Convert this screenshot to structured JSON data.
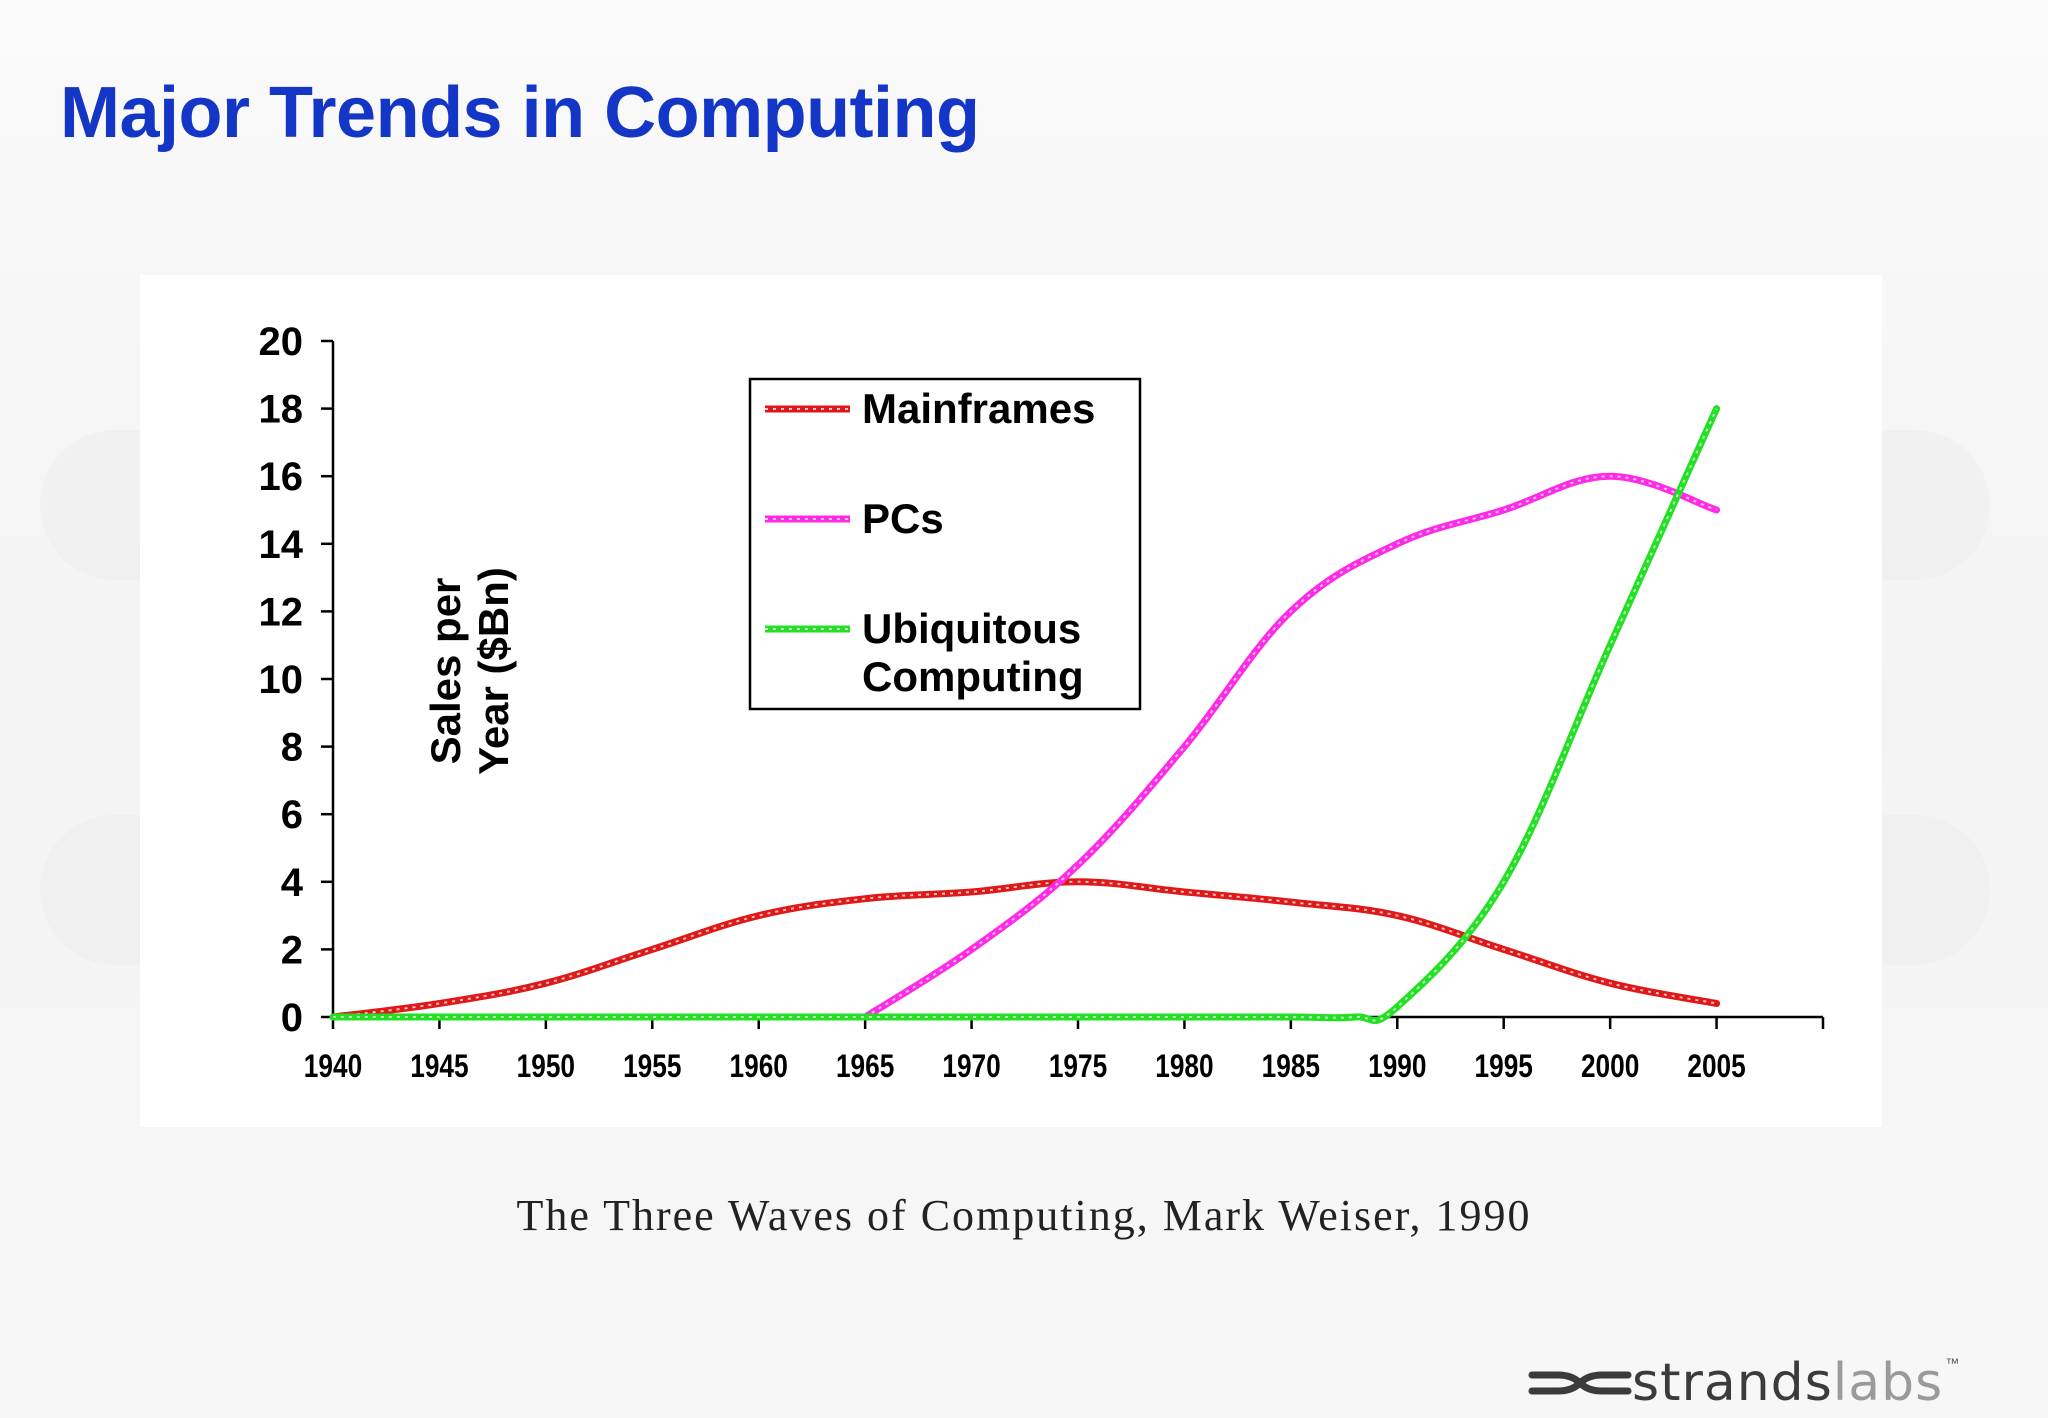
{
  "slide": {
    "title": "Major Trends in Computing",
    "caption": "The Three Waves of Computing, Mark Weiser, 1990",
    "logo": {
      "strong": "strands",
      "light": "labs",
      "tm": "™"
    }
  },
  "colors": {
    "title": "#1336c6",
    "mainframes": "#e01818",
    "pcs": "#ff2ae8",
    "ubiquitous": "#22e022"
  },
  "chart_data": {
    "type": "line",
    "title": "",
    "ylabel_lines": [
      "Sales per",
      "Year ($Bn)"
    ],
    "xlabel": "",
    "xlim": [
      1940,
      2010
    ],
    "ylim": [
      0,
      20
    ],
    "xticks": [
      1940,
      1945,
      1950,
      1955,
      1960,
      1965,
      1970,
      1975,
      1980,
      1985,
      1990,
      1995,
      2000,
      2005
    ],
    "yticks": [
      0,
      2,
      4,
      6,
      8,
      10,
      12,
      14,
      16,
      18,
      20
    ],
    "grid": false,
    "legend": {
      "placement": "top-center",
      "entries": [
        {
          "lines": [
            "Mainframes"
          ]
        },
        {
          "lines": [
            "PCs"
          ]
        },
        {
          "lines": [
            "Ubiquitous",
            "Computing"
          ]
        }
      ]
    },
    "series": [
      {
        "name": "Mainframes",
        "color": "#e01818",
        "x": [
          1940,
          1945,
          1950,
          1955,
          1960,
          1965,
          1970,
          1975,
          1980,
          1985,
          1990,
          1995,
          2000,
          2005
        ],
        "y": [
          0,
          0.4,
          1,
          2,
          3,
          3.5,
          3.7,
          4,
          3.7,
          3.4,
          3,
          2,
          1,
          0.4
        ]
      },
      {
        "name": "PCs",
        "color": "#ff2ae8",
        "x": [
          1965,
          1970,
          1975,
          1980,
          1985,
          1990,
          1995,
          2000,
          2005
        ],
        "y": [
          0,
          2,
          4.5,
          8,
          12,
          14,
          15,
          16,
          15
        ]
      },
      {
        "name": "Ubiquitous Computing",
        "color": "#22e022",
        "x": [
          1940,
          1945,
          1950,
          1955,
          1960,
          1965,
          1970,
          1975,
          1980,
          1985,
          1988,
          1990,
          1995,
          2000,
          2005
        ],
        "y": [
          0,
          0,
          0,
          0,
          0,
          0,
          0,
          0,
          0,
          0,
          0,
          0.3,
          4,
          11,
          18
        ]
      }
    ]
  }
}
